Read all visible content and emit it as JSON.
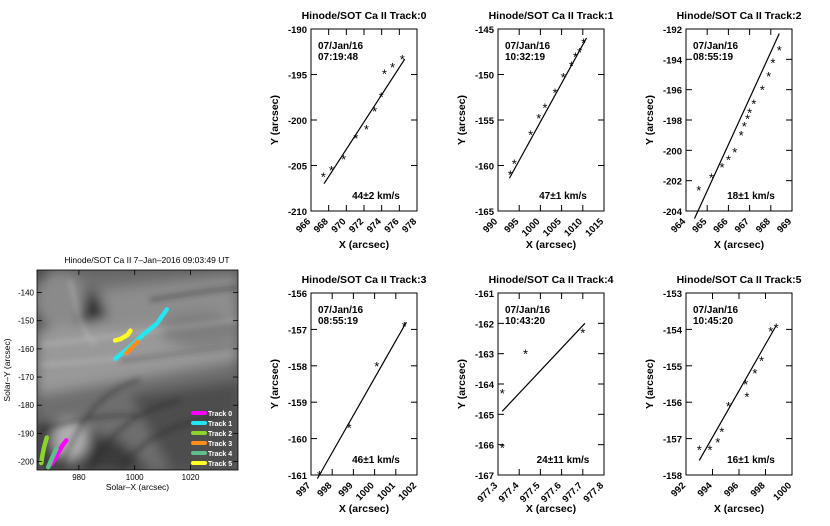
{
  "chart_data": [
    {
      "type": "image",
      "title": "Hinode/SOT Ca II  7–Jan–2016 09:03:49 UT",
      "xlabel": "Solar–X (arcsec)",
      "ylabel": "Solar–Y (arcsec)",
      "xlim": [
        965,
        1037
      ],
      "ylim": [
        -203,
        -132
      ],
      "xticks": [
        980,
        1000,
        1020
      ],
      "yticks": [
        -140,
        -150,
        -160,
        -170,
        -180,
        -190,
        -200
      ],
      "legend_position": "bottom-right",
      "tracks": [
        {
          "name": "Track 0",
          "color": "#ff00ff",
          "points": [
            [
              975.5,
              -192.5
            ],
            [
              974,
              -194.5
            ],
            [
              972.5,
              -197
            ],
            [
              971.5,
              -199
            ],
            [
              970,
              -201
            ]
          ]
        },
        {
          "name": "Track 1",
          "color": "#22e6f2",
          "points": [
            [
              993,
              -163.5
            ],
            [
              998,
              -159.5
            ],
            [
              1003,
              -155
            ],
            [
              1008,
              -151
            ],
            [
              1011.5,
              -146
            ]
          ]
        },
        {
          "name": "Track 2",
          "color": "#8cd42c",
          "points": [
            [
              968.5,
              -191.5
            ],
            [
              967.5,
              -195
            ],
            [
              967,
              -197.5
            ],
            [
              966.5,
              -200.5
            ]
          ]
        },
        {
          "name": "Track 3",
          "color": "#ff8c1a",
          "points": [
            [
              997,
              -161.5
            ],
            [
              999,
              -159.5
            ],
            [
              1001,
              -157.5
            ]
          ]
        },
        {
          "name": "Track 4",
          "color": "#5fbf8c",
          "points": [
            [
              972,
              -195.5
            ],
            [
              970.5,
              -198.5
            ],
            [
              969,
              -202
            ]
          ]
        },
        {
          "name": "Track 5",
          "color": "#ffff22",
          "points": [
            [
              993,
              -157
            ],
            [
              995,
              -156.5
            ],
            [
              997.5,
              -155
            ],
            [
              998.5,
              -153.5
            ]
          ]
        }
      ]
    },
    {
      "type": "scatter",
      "title": "Hinode/SOT Ca II Track:0",
      "date": "07/Jan/16",
      "time": "07:19:48",
      "speed": "44±2 km/s",
      "xlabel": "X (arcsec)",
      "ylabel": "Y (arcsec)",
      "xlim": [
        965,
        978
      ],
      "ylim": [
        -210,
        -190
      ],
      "xticks": [
        "966",
        "968",
        "970",
        "972",
        "974",
        "976",
        "978"
      ],
      "yticks": [
        "-190",
        "-195",
        "-200",
        "-205",
        "-210"
      ],
      "x": [
        966.5,
        967.5,
        969,
        970.5,
        971.8,
        972.8,
        973.6,
        974,
        975,
        976.2
      ],
      "y": [
        -206.2,
        -205.5,
        -204.3,
        -202,
        -201,
        -199,
        -197.4,
        -194.9,
        -194.2,
        -193.3
      ],
      "fit": [
        [
          966.6,
          -207
        ],
        [
          976.5,
          -193.3
        ]
      ]
    },
    {
      "type": "scatter",
      "title": "Hinode/SOT Ca II Track:1",
      "date": "07/Jan/16",
      "time": "10:32:19",
      "speed": "47±1 km/s",
      "xlabel": "X (arcsec)",
      "ylabel": "Y (arcsec)",
      "xlim": [
        989,
        1015
      ],
      "ylim": [
        -165,
        -145
      ],
      "xticks": [
        "990",
        "995",
        "1000",
        "1005",
        "1010",
        "1015"
      ],
      "yticks": [
        "-145",
        "-150",
        "-155",
        "-160",
        "-165"
      ],
      "x": [
        992,
        993,
        997,
        999,
        1000.5,
        1003,
        1005,
        1007,
        1008,
        1009,
        1010
      ],
      "y": [
        -161,
        -159.8,
        -156.6,
        -154.8,
        -153.6,
        -152,
        -150.3,
        -149,
        -148,
        -147.5,
        -146.5
      ],
      "fit": [
        [
          991.8,
          -161.4
        ],
        [
          1010.7,
          -146
        ]
      ]
    },
    {
      "type": "scatter",
      "title": "Hinode/SOT Ca II Track:2",
      "date": "07/Jan/16",
      "time": "08:55:19",
      "speed": "18±1 km/s",
      "xlabel": "X (arcsec)",
      "ylabel": "Y (arcsec)",
      "xlim": [
        964,
        969
      ],
      "ylim": [
        -204,
        -192
      ],
      "xticks": [
        "964",
        "965",
        "966",
        "967",
        "968",
        "969"
      ],
      "yticks": [
        "-192",
        "-194",
        "-196",
        "-198",
        "-200",
        "-202",
        "-204"
      ],
      "x": [
        964.6,
        965.2,
        965.7,
        966,
        966.3,
        966.6,
        966.75,
        966.9,
        967,
        967.2,
        967.6,
        967.9,
        968.1,
        968.4
      ],
      "y": [
        -202.6,
        -201.8,
        -201.1,
        -200.6,
        -200.1,
        -199,
        -198.4,
        -197.9,
        -197.5,
        -196.9,
        -196,
        -195.1,
        -194.2,
        -193.4
      ],
      "fit": [
        [
          964.4,
          -204.5
        ],
        [
          968.4,
          -192.3
        ]
      ]
    },
    {
      "type": "scatter",
      "title": "Hinode/SOT Ca II Track:3",
      "date": "07/Jan/16",
      "time": "08:55:19",
      "speed": "46±1 km/s",
      "xlabel": "X (arcsec)",
      "ylabel": "Y (arcsec)",
      "xlim": [
        997,
        1002
      ],
      "ylim": [
        -161,
        -156
      ],
      "xticks": [
        "997",
        "998",
        "999",
        "1000",
        "1001",
        "1002"
      ],
      "yticks": [
        "-156",
        "-157",
        "-158",
        "-159",
        "-160",
        "-161"
      ],
      "x": [
        997.4,
        998.8,
        1000.1,
        1001.4
      ],
      "y": [
        -161,
        -159.7,
        -158,
        -156.9
      ],
      "fit": [
        [
          997.3,
          -161.1
        ],
        [
          1001.5,
          -156.8
        ]
      ]
    },
    {
      "type": "scatter",
      "title": "Hinode/SOT Ca II Track:4",
      "date": "07/Jan/16",
      "time": "10:43:20",
      "speed": "24±11 km/s",
      "xlabel": "X (arcsec)",
      "ylabel": "Y (arcsec)",
      "xlim": [
        977.3,
        977.8
      ],
      "ylim": [
        -167,
        -161
      ],
      "xticks": [
        "977.3",
        "977.4",
        "977.5",
        "977.6",
        "977.7",
        "977.8"
      ],
      "yticks": [
        "-161",
        "-162",
        "-163",
        "-164",
        "-165",
        "-166",
        "-167"
      ],
      "x": [
        977.32,
        977.32,
        977.43,
        977.7
      ],
      "y": [
        -164.3,
        -166.1,
        -163,
        -162.3
      ],
      "fit": [
        [
          977.32,
          -164.9
        ],
        [
          977.71,
          -162
        ]
      ]
    },
    {
      "type": "scatter",
      "title": "Hinode/SOT Ca II Track:5",
      "date": "07/Jan/16",
      "time": "10:45:20",
      "speed": "16±1 km/s",
      "xlabel": "X (arcsec)",
      "ylabel": "Y (arcsec)",
      "xlim": [
        992,
        1000
      ],
      "ylim": [
        -158,
        -153
      ],
      "xticks": [
        "992",
        "994",
        "996",
        "998",
        "1000"
      ],
      "yticks": [
        "-153",
        "-154",
        "-155",
        "-156",
        "-157",
        "-158"
      ],
      "x": [
        993,
        993.8,
        994.4,
        994.7,
        995.2,
        996.5,
        996.6,
        997.2,
        997.7,
        998.4,
        998.8
      ],
      "y": [
        -157.3,
        -157.3,
        -157.1,
        -156.8,
        -156.1,
        -155.5,
        -155.85,
        -155.2,
        -154.85,
        -154.05,
        -153.95
      ],
      "fit": [
        [
          993,
          -157.6
        ],
        [
          998.8,
          -153.9
        ]
      ]
    }
  ]
}
